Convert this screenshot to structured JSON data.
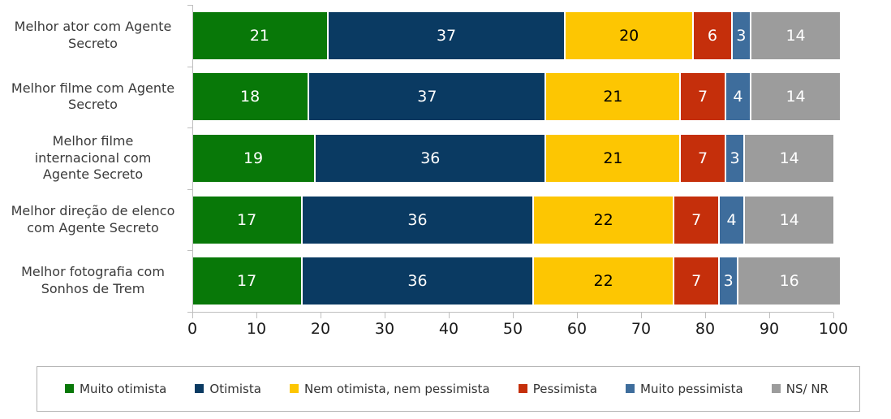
{
  "chart_data": {
    "type": "bar",
    "orientation": "horizontal-stacked",
    "title": "",
    "categories": [
      "Melhor ator com Agente\nSecreto",
      "Melhor filme com Agente\nSecreto",
      "Melhor filme\ninternacional com\nAgente Secreto",
      "Melhor direção de elenco\ncom Agente Secreto",
      "Melhor fotografia com\nSonhos de Trem"
    ],
    "series": [
      {
        "name": "Muito otimista",
        "color": "#087808",
        "label_color": "#ffffff",
        "values": [
          21,
          18,
          19,
          17,
          17
        ]
      },
      {
        "name": "Otimista",
        "color": "#0a3a62",
        "label_color": "#ffffff",
        "values": [
          37,
          37,
          36,
          36,
          36
        ]
      },
      {
        "name": "Nem otimista, nem pessimista",
        "color": "#fdc602",
        "label_color": "#000000",
        "values": [
          20,
          21,
          21,
          22,
          22
        ]
      },
      {
        "name": "Pessimista",
        "color": "#c52f0b",
        "label_color": "#ffffff",
        "values": [
          6,
          7,
          7,
          7,
          7
        ]
      },
      {
        "name": "Muito pessimista",
        "color": "#3e6d9c",
        "label_color": "#ffffff",
        "values": [
          3,
          4,
          3,
          4,
          3
        ]
      },
      {
        "name": "NS/ NR",
        "color": "#9c9c9c",
        "label_color": "#ffffff",
        "values": [
          14,
          14,
          14,
          14,
          16
        ]
      }
    ],
    "xlim": [
      0,
      100
    ],
    "x_ticks": [
      0,
      10,
      20,
      30,
      40,
      50,
      60,
      70,
      80,
      90,
      100
    ],
    "grid": false,
    "legend_position": "bottom",
    "axis_color": "#bfbfbf",
    "tick_label_color": "#1a1a1a",
    "category_label_color": "#3a3a3a",
    "bar_separator_color": "#ffffff"
  }
}
